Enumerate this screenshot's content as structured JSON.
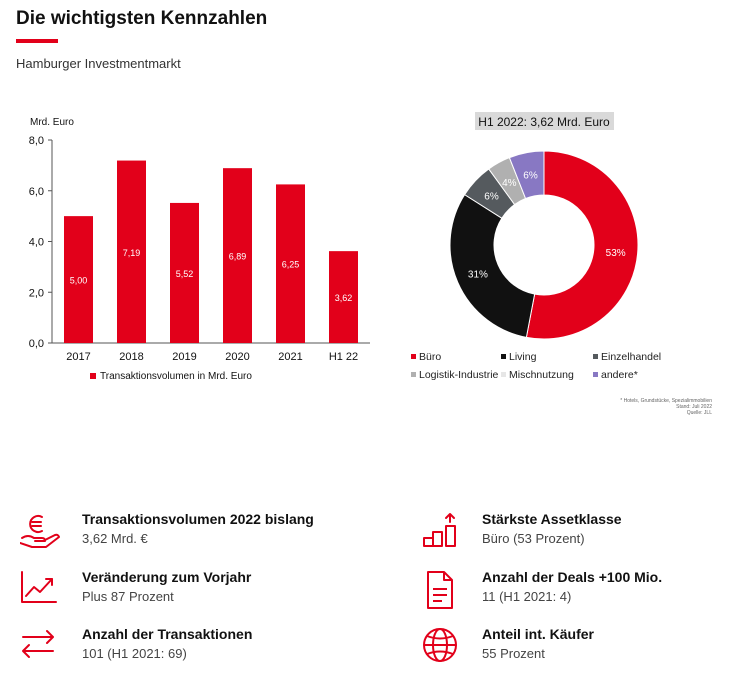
{
  "header": {
    "title": "Die wichtigsten Kennzahlen",
    "subtitle": "Hamburger Investmentmarkt"
  },
  "colors": {
    "accent": "#e2001a",
    "bar": "#e2001a",
    "buero": "#e2001a",
    "living": "#111111",
    "einzelhandel": "#555a5e",
    "logistik": "#b0b0b0",
    "mischnutzung": "#e6e6e6",
    "andere": "#8878c3"
  },
  "chart_data": [
    {
      "type": "bar",
      "ylabel": "Mrd. Euro",
      "categories": [
        "2017",
        "2018",
        "2019",
        "2020",
        "2021",
        "H1 22"
      ],
      "series": [
        {
          "name": "Transaktionsvolumen in Mrd. Euro",
          "values": [
            5.0,
            7.19,
            5.52,
            6.89,
            6.25,
            3.62
          ]
        }
      ],
      "data_labels": [
        "5,00",
        "7,19",
        "5,52",
        "6,89",
        "6,25",
        "3,62"
      ],
      "ylim": [
        0,
        8
      ],
      "yticks": [
        "0,0",
        "2,0",
        "4,0",
        "6,0",
        "8,0"
      ],
      "legend": "bottom"
    },
    {
      "type": "pie",
      "title": "H1 2022: 3,62 Mrd. Euro",
      "slices": [
        {
          "name": "Büro",
          "value": 53,
          "label": "53%",
          "color_key": "buero"
        },
        {
          "name": "Living",
          "value": 31,
          "label": "31%",
          "color_key": "living"
        },
        {
          "name": "Einzelhandel",
          "value": 6,
          "label": "6%",
          "color_key": "einzelhandel"
        },
        {
          "name": "Logistik-Industrie",
          "value": 4,
          "label": "4%",
          "color_key": "logistik"
        },
        {
          "name": "Mischnutzung",
          "value": 0,
          "label": "",
          "color_key": "mischnutzung"
        },
        {
          "name": "andere*",
          "value": 6,
          "label": "6%",
          "color_key": "andere"
        }
      ],
      "legend": "bottom",
      "footnote": [
        "* Hotels, Grundstücke, Spezialimmobilien",
        "Stand: Juli 2022",
        "Quelle: JLL"
      ]
    }
  ],
  "kpis": [
    {
      "label": "Transaktionsvolumen 2022 bislang",
      "value": "3,62 Mrd. €",
      "icon": "euro-hand-icon"
    },
    {
      "label": "Stärkste Assetklasse",
      "value": "Büro (53 Prozent)",
      "icon": "bar-chart-icon"
    },
    {
      "label": "Veränderung zum Vorjahr",
      "value": "Plus 87 Prozent",
      "icon": "line-chart-icon"
    },
    {
      "label": "Anzahl der Deals +100 Mio.",
      "value": "11 (H1 2021: 4)",
      "icon": "document-icon"
    },
    {
      "label": "Anzahl der Transaktionen",
      "value": "101 (H1 2021: 69)",
      "icon": "exchange-arrows-icon"
    },
    {
      "label": "Anteil int. Käufer",
      "value": "55 Prozent",
      "icon": "globe-icon"
    }
  ]
}
